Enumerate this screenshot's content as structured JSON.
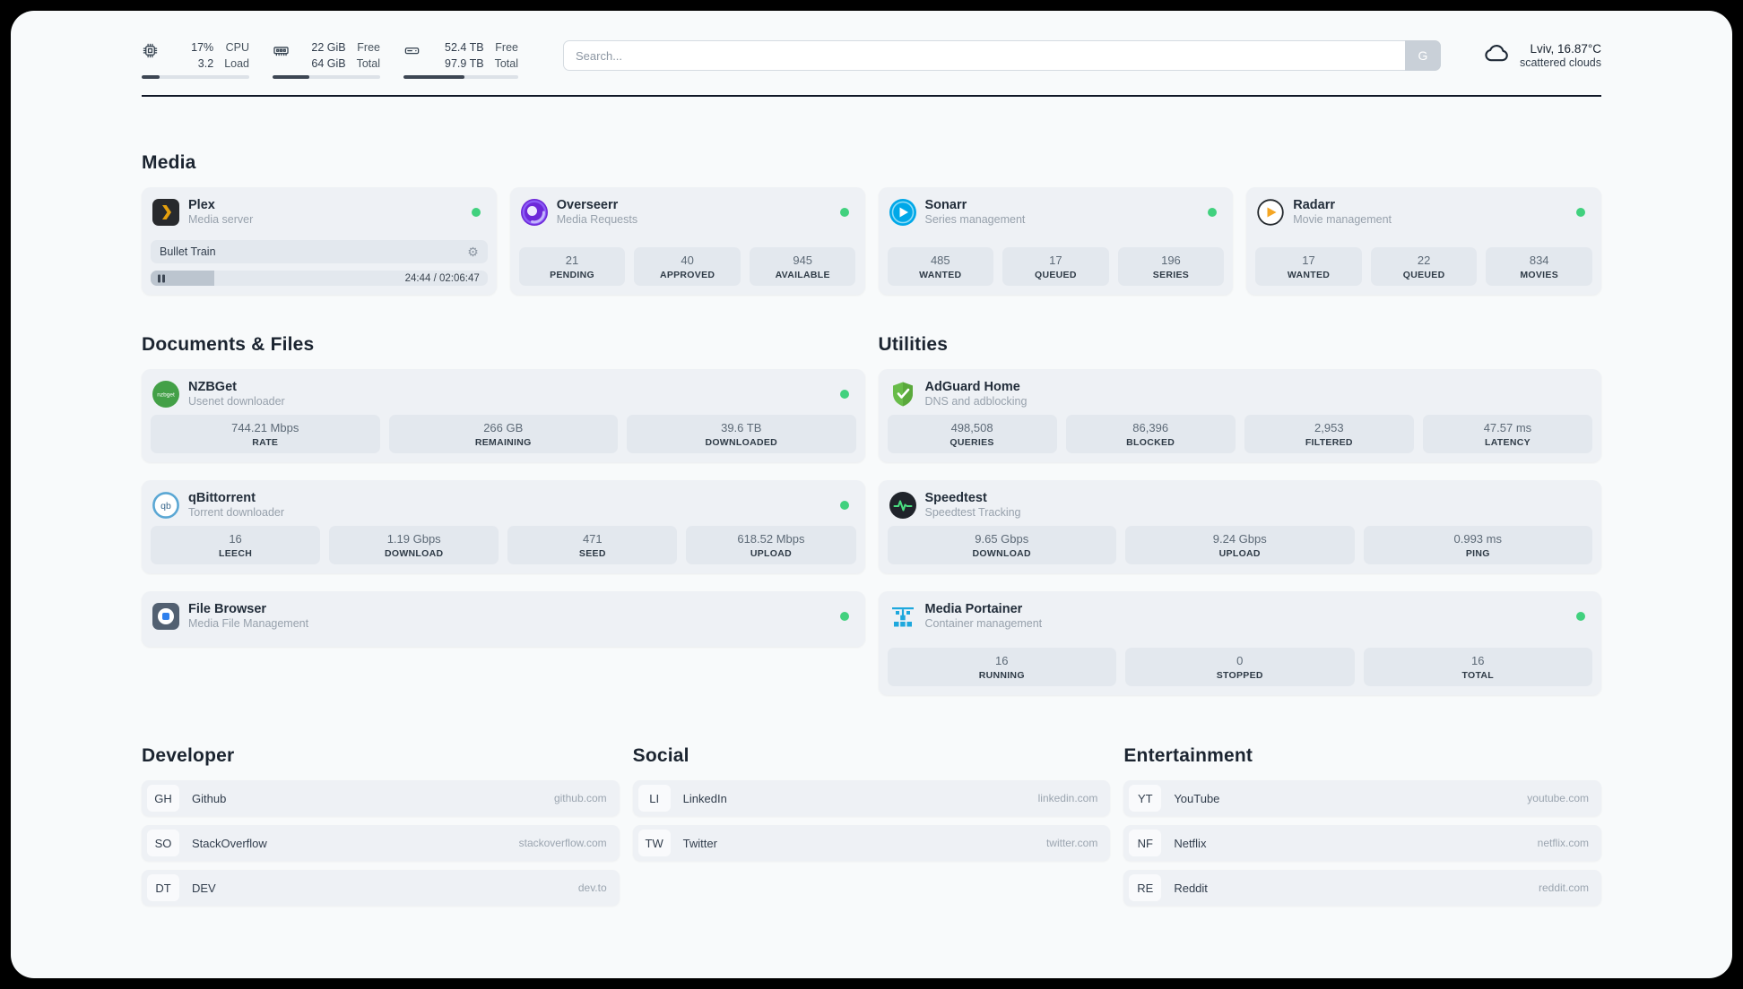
{
  "icons": {
    "gear": "⚙",
    "nzbget_text": "nzbget",
    "qbittorrent_text": "qb"
  },
  "header": {
    "cpu": {
      "value_top": "17%",
      "value_bottom": "3.2",
      "label_top": "CPU",
      "label_bottom": "Load",
      "progress": 17
    },
    "memory": {
      "value_top": "22 GiB",
      "value_bottom": "64 GiB",
      "label_top": "Free",
      "label_bottom": "Total",
      "progress": 34
    },
    "disk": {
      "value_top": "52.4 TB",
      "value_bottom": "97.9 TB",
      "label_top": "Free",
      "label_bottom": "Total",
      "progress": 53
    },
    "search": {
      "placeholder": "Search...",
      "button_label": "G"
    },
    "weather": {
      "location": "Lviv, 16.87°C",
      "condition": "scattered clouds"
    }
  },
  "groups": {
    "media": {
      "title": "Media",
      "plex": {
        "name": "Plex",
        "description": "Media server",
        "now_playing": "Bullet Train",
        "time": "24:44 / 02:06:47",
        "progress_percent": 19
      },
      "overseerr": {
        "name": "Overseerr",
        "description": "Media Requests",
        "stats": [
          {
            "value": "21",
            "label": "PENDING"
          },
          {
            "value": "40",
            "label": "APPROVED"
          },
          {
            "value": "945",
            "label": "AVAILABLE"
          }
        ]
      },
      "sonarr": {
        "name": "Sonarr",
        "description": "Series management",
        "stats": [
          {
            "value": "485",
            "label": "WANTED"
          },
          {
            "value": "17",
            "label": "QUEUED"
          },
          {
            "value": "196",
            "label": "SERIES"
          }
        ]
      },
      "radarr": {
        "name": "Radarr",
        "description": "Movie management",
        "stats": [
          {
            "value": "17",
            "label": "WANTED"
          },
          {
            "value": "22",
            "label": "QUEUED"
          },
          {
            "value": "834",
            "label": "MOVIES"
          }
        ]
      }
    },
    "documents": {
      "title": "Documents & Files",
      "nzbget": {
        "name": "NZBGet",
        "description": "Usenet downloader",
        "stats": [
          {
            "value": "744.21 Mbps",
            "label": "RATE"
          },
          {
            "value": "266 GB",
            "label": "REMAINING"
          },
          {
            "value": "39.6 TB",
            "label": "DOWNLOADED"
          }
        ]
      },
      "qbittorrent": {
        "name": "qBittorrent",
        "description": "Torrent downloader",
        "stats": [
          {
            "value": "16",
            "label": "LEECH"
          },
          {
            "value": "1.19 Gbps",
            "label": "DOWNLOAD"
          },
          {
            "value": "471",
            "label": "SEED"
          },
          {
            "value": "618.52 Mbps",
            "label": "UPLOAD"
          }
        ]
      },
      "filebrowser": {
        "name": "File Browser",
        "description": "Media File Management"
      }
    },
    "utilities": {
      "title": "Utilities",
      "adguard": {
        "name": "AdGuard Home",
        "description": "DNS and adblocking",
        "stats": [
          {
            "value": "498,508",
            "label": "QUERIES"
          },
          {
            "value": "86,396",
            "label": "BLOCKED"
          },
          {
            "value": "2,953",
            "label": "FILTERED"
          },
          {
            "value": "47.57 ms",
            "label": "LATENCY"
          }
        ]
      },
      "speedtest": {
        "name": "Speedtest",
        "description": "Speedtest Tracking",
        "stats": [
          {
            "value": "9.65 Gbps",
            "label": "DOWNLOAD"
          },
          {
            "value": "9.24 Gbps",
            "label": "UPLOAD"
          },
          {
            "value": "0.993 ms",
            "label": "PING"
          }
        ]
      },
      "portainer": {
        "name": "Media Portainer",
        "description": "Container management",
        "stats": [
          {
            "value": "16",
            "label": "RUNNING"
          },
          {
            "value": "0",
            "label": "STOPPED"
          },
          {
            "value": "16",
            "label": "TOTAL"
          }
        ]
      }
    }
  },
  "bookmarks": {
    "developer": {
      "title": "Developer",
      "items": [
        {
          "abbr": "GH",
          "name": "Github",
          "url": "github.com"
        },
        {
          "abbr": "SO",
          "name": "StackOverflow",
          "url": "stackoverflow.com"
        },
        {
          "abbr": "DT",
          "name": "DEV",
          "url": "dev.to"
        }
      ]
    },
    "social": {
      "title": "Social",
      "items": [
        {
          "abbr": "LI",
          "name": "LinkedIn",
          "url": "linkedin.com"
        },
        {
          "abbr": "TW",
          "name": "Twitter",
          "url": "twitter.com"
        }
      ]
    },
    "entertainment": {
      "title": "Entertainment",
      "items": [
        {
          "abbr": "YT",
          "name": "YouTube",
          "url": "youtube.com"
        },
        {
          "abbr": "NF",
          "name": "Netflix",
          "url": "netflix.com"
        },
        {
          "abbr": "RE",
          "name": "Reddit",
          "url": "reddit.com"
        }
      ]
    }
  }
}
